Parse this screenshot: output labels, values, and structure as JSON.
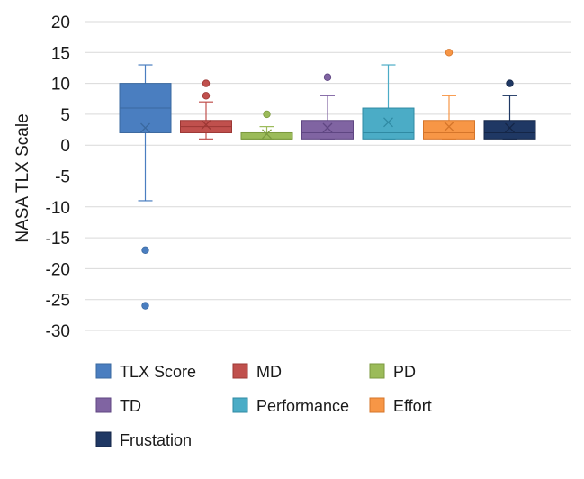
{
  "chart_data": {
    "type": "box",
    "title": "",
    "xlabel": "",
    "ylabel": "NASA TLX Scale",
    "ylim": [
      -30,
      20
    ],
    "yticks": [
      20,
      15,
      10,
      5,
      0,
      -5,
      -10,
      -15,
      -20,
      -25,
      -30
    ],
    "grid": true,
    "legend_position": "bottom",
    "series": [
      {
        "name": "TLX Score",
        "color": "#4a7ec0",
        "edge": "#3a689f",
        "whisker_low": -9,
        "q1": 2,
        "median": 6,
        "q3": 10,
        "whisker_high": 13,
        "mean": 2.8,
        "outliers": [
          -17,
          -26
        ]
      },
      {
        "name": "MD",
        "color": "#c0504d",
        "edge": "#9c3734",
        "whisker_low": 1,
        "q1": 2,
        "median": 3,
        "q3": 4,
        "whisker_high": 7,
        "mean": 3.3,
        "outliers": [
          8,
          10
        ]
      },
      {
        "name": "PD",
        "color": "#9bbb59",
        "edge": "#7b9a3f",
        "whisker_low": 1,
        "q1": 1,
        "median": 1,
        "q3": 2,
        "whisker_high": 3,
        "mean": 1.8,
        "outliers": [
          5
        ]
      },
      {
        "name": "TD",
        "color": "#8064a2",
        "edge": "#5f4682",
        "whisker_low": 1,
        "q1": 1,
        "median": 2,
        "q3": 4,
        "whisker_high": 8,
        "mean": 2.8,
        "outliers": [
          11
        ]
      },
      {
        "name": "Performance",
        "color": "#4bacc6",
        "edge": "#2f8aa3",
        "whisker_low": 1,
        "q1": 1,
        "median": 2,
        "q3": 6,
        "whisker_high": 13,
        "mean": 3.7,
        "outliers": []
      },
      {
        "name": "Effort",
        "color": "#f79646",
        "edge": "#d5752a",
        "whisker_low": 1,
        "q1": 1,
        "median": 2,
        "q3": 4,
        "whisker_high": 8,
        "mean": 3.0,
        "outliers": [
          15
        ]
      },
      {
        "name": "Frustation",
        "color": "#1f3864",
        "edge": "#142647",
        "whisker_low": 1,
        "q1": 1,
        "median": 2,
        "q3": 4,
        "whisker_high": 8,
        "mean": 2.8,
        "outliers": [
          10
        ]
      }
    ]
  }
}
